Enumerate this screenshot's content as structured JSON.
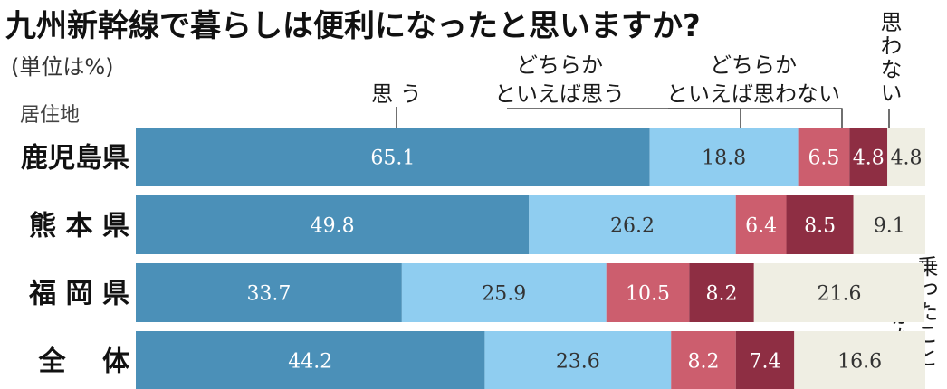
{
  "chart_data": {
    "type": "bar",
    "orientation": "horizontal",
    "stacked": true,
    "title": "九州新幹線で暮らしは便利になったと思いますか?",
    "unit": "(単位は%)",
    "ylabel": "居住地",
    "xlim": [
      0,
      100
    ],
    "categories": [
      "鹿児島県",
      "熊 本 県",
      "福 岡 県",
      "全　 体"
    ],
    "series": [
      {
        "name": "思 う",
        "color": "#4b90b8",
        "values": [
          65.1,
          49.8,
          33.7,
          44.2
        ]
      },
      {
        "name": "どちらかといえば思う",
        "name_lines": [
          "どちらか",
          "といえば思う"
        ],
        "color": "#8fcdf0",
        "values": [
          18.8,
          26.2,
          25.9,
          23.6
        ]
      },
      {
        "name": "どちらかといえば思わない",
        "name_lines": [
          "どちらか",
          "といえば思わない"
        ],
        "color": "#cc5e6e",
        "values": [
          6.5,
          6.4,
          10.5,
          8.2
        ]
      },
      {
        "name": "思わない",
        "color": "#8e2e43",
        "values": [
          4.8,
          8.5,
          8.2,
          7.4
        ]
      },
      {
        "name": "乗ったことがない",
        "name_columns": [
          "乗ったこと",
          "がない"
        ],
        "color": "#efeee3",
        "values": [
          4.8,
          9.1,
          21.6,
          16.6
        ]
      }
    ],
    "grid": false,
    "legend": "top"
  }
}
